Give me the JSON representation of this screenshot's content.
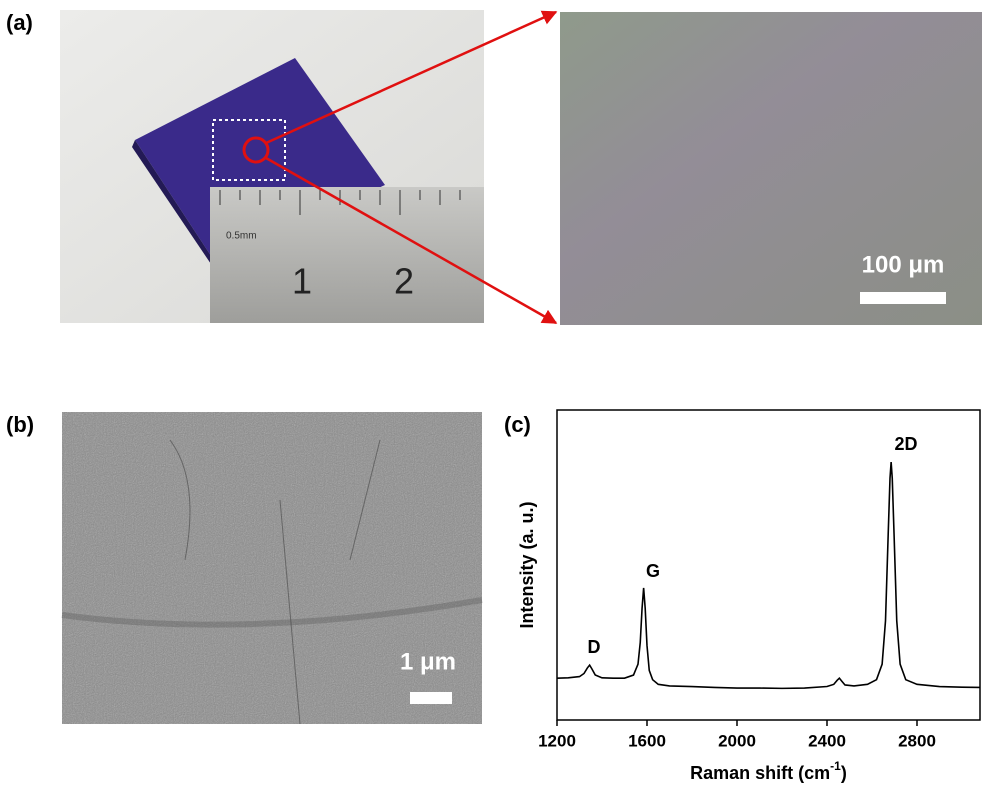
{
  "panels": {
    "a": "(a)",
    "b": "(b)",
    "c": "(c)"
  },
  "photo": {
    "ruler_labels": [
      "0.5mm",
      "1",
      "2"
    ]
  },
  "optical": {
    "scale_label": "100 μm"
  },
  "sem": {
    "scale_label": "1 μm"
  },
  "chart_data": {
    "type": "line",
    "y_label": "Intensity (a. u.)",
    "x_label": {
      "text": "Raman shift (cm",
      "superscript": "-1",
      "suffix": ")"
    },
    "annotations": [
      "D",
      "G",
      "2D"
    ],
    "xlim": [
      1200,
      3080
    ],
    "ylim": [
      0,
      100
    ],
    "xticks": [
      1200,
      1600,
      2000,
      2400,
      2800
    ],
    "series": [
      {
        "color": "#000000",
        "x": [
          1200,
          1250,
          1300,
          1320,
          1335,
          1345,
          1355,
          1370,
          1400,
          1450,
          1500,
          1540,
          1560,
          1570,
          1578,
          1585,
          1592,
          1600,
          1610,
          1625,
          1650,
          1700,
          1800,
          1900,
          2000,
          2100,
          2200,
          2300,
          2400,
          2430,
          2445,
          2455,
          2465,
          2480,
          2520,
          2580,
          2620,
          2645,
          2660,
          2672,
          2680,
          2685,
          2690,
          2698,
          2710,
          2725,
          2750,
          2800,
          2900,
          3000,
          3080
        ],
        "values": [
          13.5,
          13.6,
          14,
          15,
          16.8,
          17.7,
          16.5,
          14.5,
          13.6,
          13.5,
          13.5,
          14.5,
          18,
          25,
          36,
          42.6,
          36,
          24,
          16,
          13,
          11.5,
          11,
          10.8,
          10.5,
          10.3,
          10.3,
          10.2,
          10.3,
          10.8,
          11.5,
          12.8,
          13.5,
          12.6,
          11.3,
          11,
          11.5,
          13,
          18,
          32,
          60,
          78,
          83.2,
          78,
          60,
          32,
          18,
          13,
          11.5,
          10.8,
          10.6,
          10.5
        ]
      }
    ]
  }
}
